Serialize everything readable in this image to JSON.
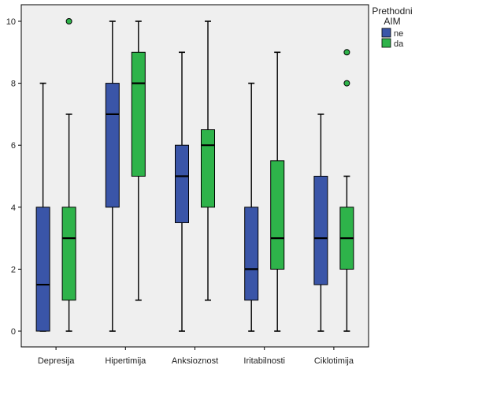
{
  "chart_data": {
    "type": "boxplot",
    "title": "",
    "xlabel": "",
    "ylabel": "",
    "ylim": [
      0,
      10
    ],
    "yticks": [
      0,
      2,
      4,
      6,
      8,
      10
    ],
    "grid": false,
    "legend": {
      "title_lines": [
        "Prethodni",
        "AIM"
      ],
      "placement": "top-right",
      "entries": [
        {
          "name": "ne",
          "color": "#3a55a8"
        },
        {
          "name": "da",
          "color": "#2eb34a"
        }
      ]
    },
    "categories": [
      "Depresija",
      "Hipertimija",
      "Anksioznost",
      "Iritabilnosti",
      "Ciklotimija"
    ],
    "series": [
      {
        "name": "ne",
        "color": "#3a55a8",
        "boxes": [
          {
            "min": 0,
            "q1": 0,
            "median": 1.5,
            "q3": 4,
            "max": 8,
            "outliers": []
          },
          {
            "min": 0,
            "q1": 4,
            "median": 7,
            "q3": 8,
            "max": 10,
            "outliers": []
          },
          {
            "min": 0,
            "q1": 3.5,
            "median": 5,
            "q3": 6,
            "max": 9,
            "outliers": []
          },
          {
            "min": 0,
            "q1": 1,
            "median": 2,
            "q3": 4,
            "max": 8,
            "outliers": []
          },
          {
            "min": 0,
            "q1": 1.5,
            "median": 3,
            "q3": 5,
            "max": 7,
            "outliers": []
          }
        ]
      },
      {
        "name": "da",
        "color": "#2eb34a",
        "boxes": [
          {
            "min": 0,
            "q1": 1,
            "median": 3,
            "q3": 4,
            "max": 7,
            "outliers": [
              10
            ]
          },
          {
            "min": 1,
            "q1": 5,
            "median": 8,
            "q3": 9,
            "max": 10,
            "outliers": []
          },
          {
            "min": 1,
            "q1": 4,
            "median": 6,
            "q3": 6.5,
            "max": 10,
            "outliers": []
          },
          {
            "min": 0,
            "q1": 2,
            "median": 3,
            "q3": 5.5,
            "max": 9,
            "outliers": []
          },
          {
            "min": 0,
            "q1": 2,
            "median": 3,
            "q3": 4,
            "max": 5,
            "outliers": [
              8,
              9
            ]
          }
        ]
      }
    ]
  },
  "colors": {
    "plot_background": "#efefef",
    "outer_background": "#ffffff",
    "axis": "#000000"
  }
}
